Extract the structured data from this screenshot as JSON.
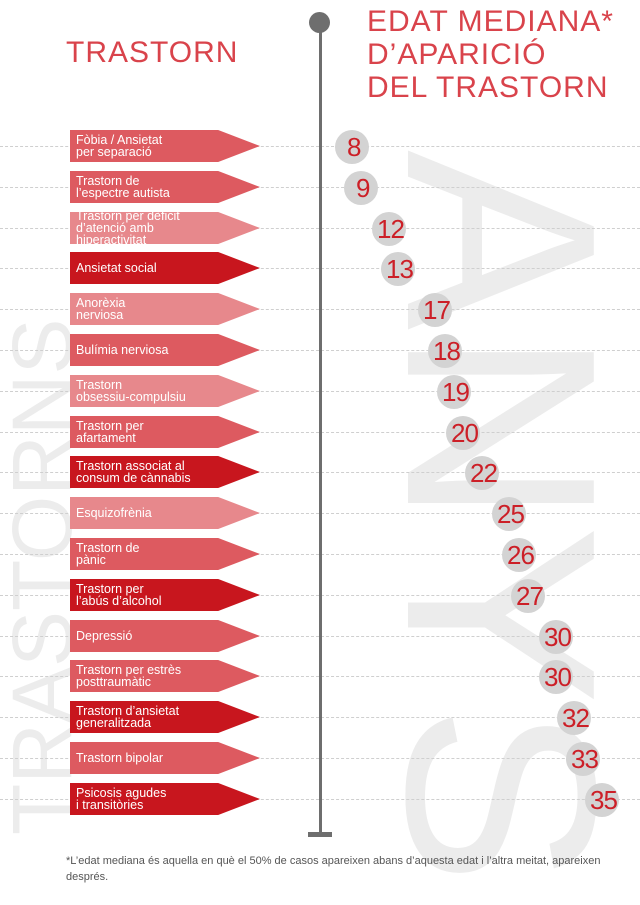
{
  "header": {
    "left_title": "TRASTORN",
    "right_title_lines": [
      "EDAT MEDIANA*",
      "D’APARICIÓ",
      "DEL TRASTORN"
    ]
  },
  "watermark": {
    "left": "TRASTORNS",
    "right": "ANYS"
  },
  "footnote": "*L’edat mediana és aquella en què el 50% de casos apareixen abans d’aquesta edat i l’altra meitat, apareixen després.",
  "colors": {
    "accent": "#d9434b",
    "age_text": "#cc1f27",
    "axis": "#6e6e6e",
    "bubble": "#d3d3d3",
    "arrow_dark": "#c8161e",
    "arrow_mid": "#dd5a60",
    "arrow_light": "#e7888c"
  },
  "chart_data": {
    "type": "table",
    "xlabel": "",
    "ylabel": "",
    "categories": [
      "Fòbia / Ansietat\nper separació",
      "Trastorn de\nl’espectre autista",
      "Trastorn per dèficit\nd’atenció amb hiperactivitat",
      "Ansietat social",
      "Anorèxia\nnerviosa",
      "Bulímia nerviosa",
      "Trastorn\nobsessiu-compulsiu",
      "Trastorn per\nafartament",
      "Trastorn associat al\nconsum de cànnabis",
      "Esquizofrènia",
      "Trastorn de\npànic",
      "Trastorn per\nl’abús d’alcohol",
      "Depressió",
      "Trastorn per estrès\nposttraumàtic",
      "Trastorn d’ansietat\ngeneralitzada",
      "Trastorn bipolar",
      "Psicosis agudes\ni transitòries"
    ],
    "values": [
      8,
      9,
      12,
      13,
      17,
      18,
      19,
      20,
      22,
      25,
      26,
      27,
      30,
      30,
      32,
      33,
      35
    ],
    "shades": [
      "mid",
      "mid",
      "light",
      "dark",
      "light",
      "mid",
      "light",
      "mid",
      "dark",
      "light",
      "mid",
      "dark",
      "mid",
      "mid",
      "dark",
      "mid",
      "dark"
    ]
  }
}
